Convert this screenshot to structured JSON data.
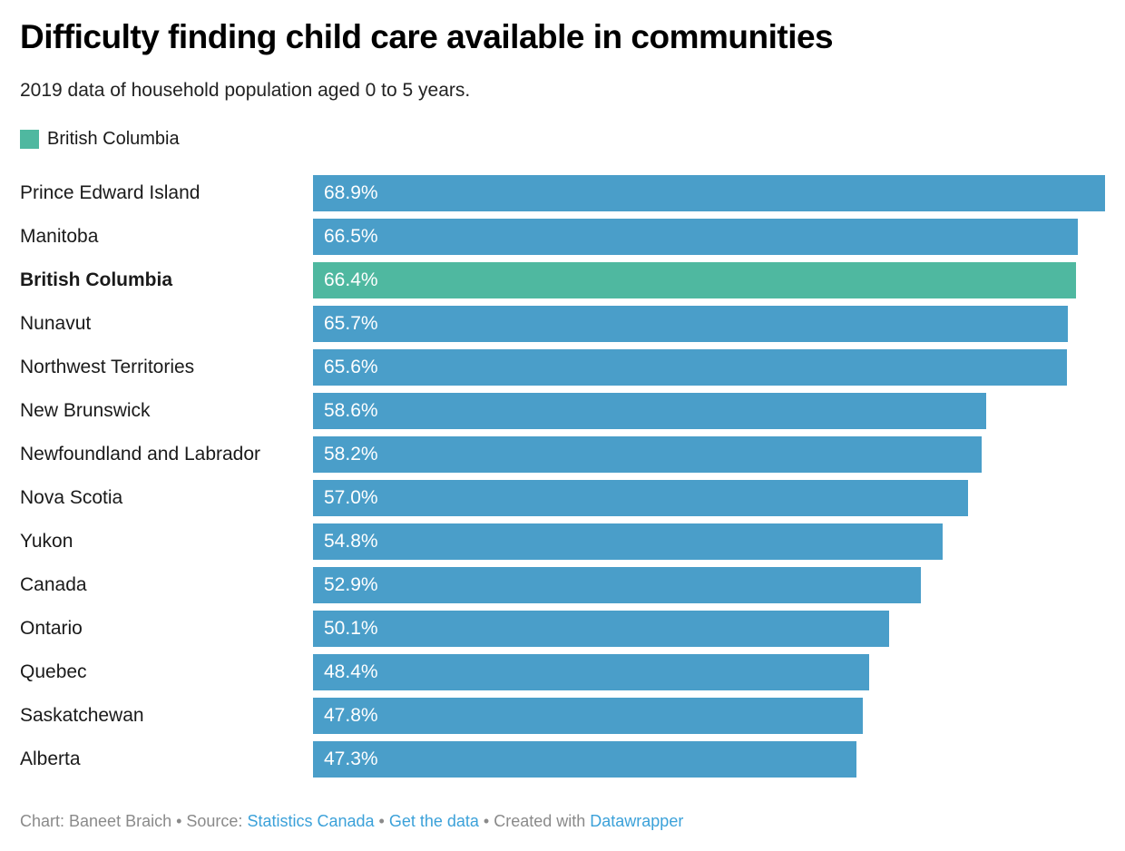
{
  "header": {
    "title": "Difficulty finding child care available in communities",
    "subtitle": "2019 data of household population aged 0 to 5 years."
  },
  "legend": {
    "label": "British Columbia",
    "color": "#4fb8a0"
  },
  "chart_data": {
    "type": "bar",
    "orientation": "horizontal",
    "title": "Difficulty finding child care available in communities",
    "subtitle": "2019 data of household population aged 0 to 5 years.",
    "categories": [
      "Prince Edward Island",
      "Manitoba",
      "British Columbia",
      "Nunavut",
      "Northwest Territories",
      "New Brunswick",
      "Newfoundland and Labrador",
      "Nova Scotia",
      "Yukon",
      "Canada",
      "Ontario",
      "Quebec",
      "Saskatchewan",
      "Alberta"
    ],
    "values": [
      68.9,
      66.5,
      66.4,
      65.7,
      65.6,
      58.6,
      58.2,
      57.0,
      54.8,
      52.9,
      50.1,
      48.4,
      47.8,
      47.3
    ],
    "value_labels": [
      "68.9%",
      "66.5%",
      "66.4%",
      "65.7%",
      "65.6%",
      "58.6%",
      "58.2%",
      "57.0%",
      "54.8%",
      "52.9%",
      "50.1%",
      "48.4%",
      "47.8%",
      "47.3%"
    ],
    "highlight_category": "British Columbia",
    "bar_color": "#4a9ec9",
    "highlight_color": "#4fb8a0",
    "value_label_color": "#ffffff",
    "xlim": [
      0,
      68.9
    ],
    "grid": false,
    "legend_position": "top-left"
  },
  "footer": {
    "credit_prefix": "Chart: Baneet Braich • Source: ",
    "source_link": "Statistics Canada",
    "separator_1": " • ",
    "data_link": "Get the data",
    "separator_2": " • Created with ",
    "tool_link": "Datawrapper",
    "link_color": "#3ba1d9"
  }
}
